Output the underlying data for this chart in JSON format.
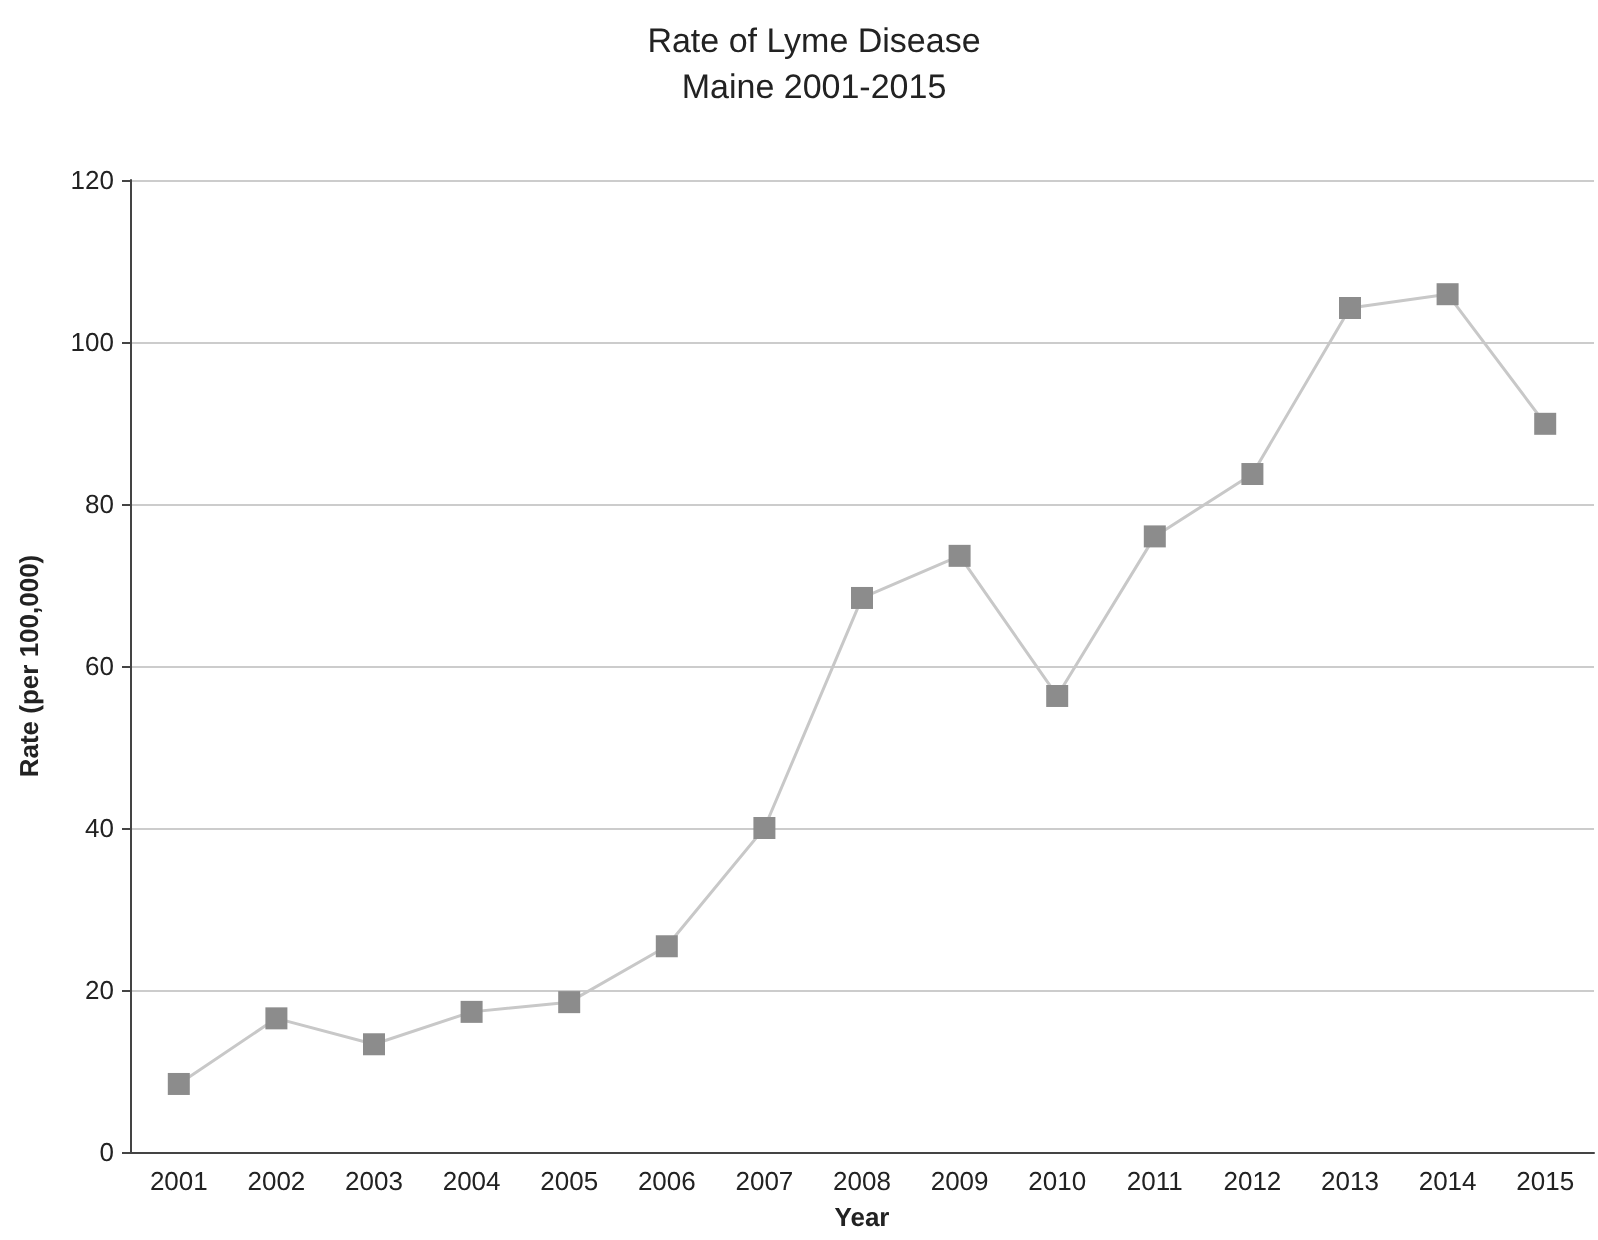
{
  "chart_data": {
    "type": "line",
    "title": "Rate of Lyme Disease",
    "subtitle": "Maine 2001-2015",
    "xlabel": "Year",
    "ylabel": "Rate (per 100,000)",
    "categories": [
      "2001",
      "2002",
      "2003",
      "2004",
      "2005",
      "2006",
      "2007",
      "2008",
      "2009",
      "2010",
      "2011",
      "2012",
      "2013",
      "2014",
      "2015"
    ],
    "series": [
      {
        "color": "#c8c8c8",
        "values": [
          8.4,
          16.5,
          13.3,
          17.3,
          18.5,
          25.4,
          40,
          68.4,
          73.6,
          56.3,
          76,
          83.7,
          104.2,
          105.9,
          89.9
        ]
      }
    ],
    "ylim": [
      0,
      120
    ],
    "yticks": [
      0,
      20,
      40,
      60,
      80,
      100,
      120
    ],
    "grid": "y",
    "marker": "square",
    "line_style": "solid"
  }
}
